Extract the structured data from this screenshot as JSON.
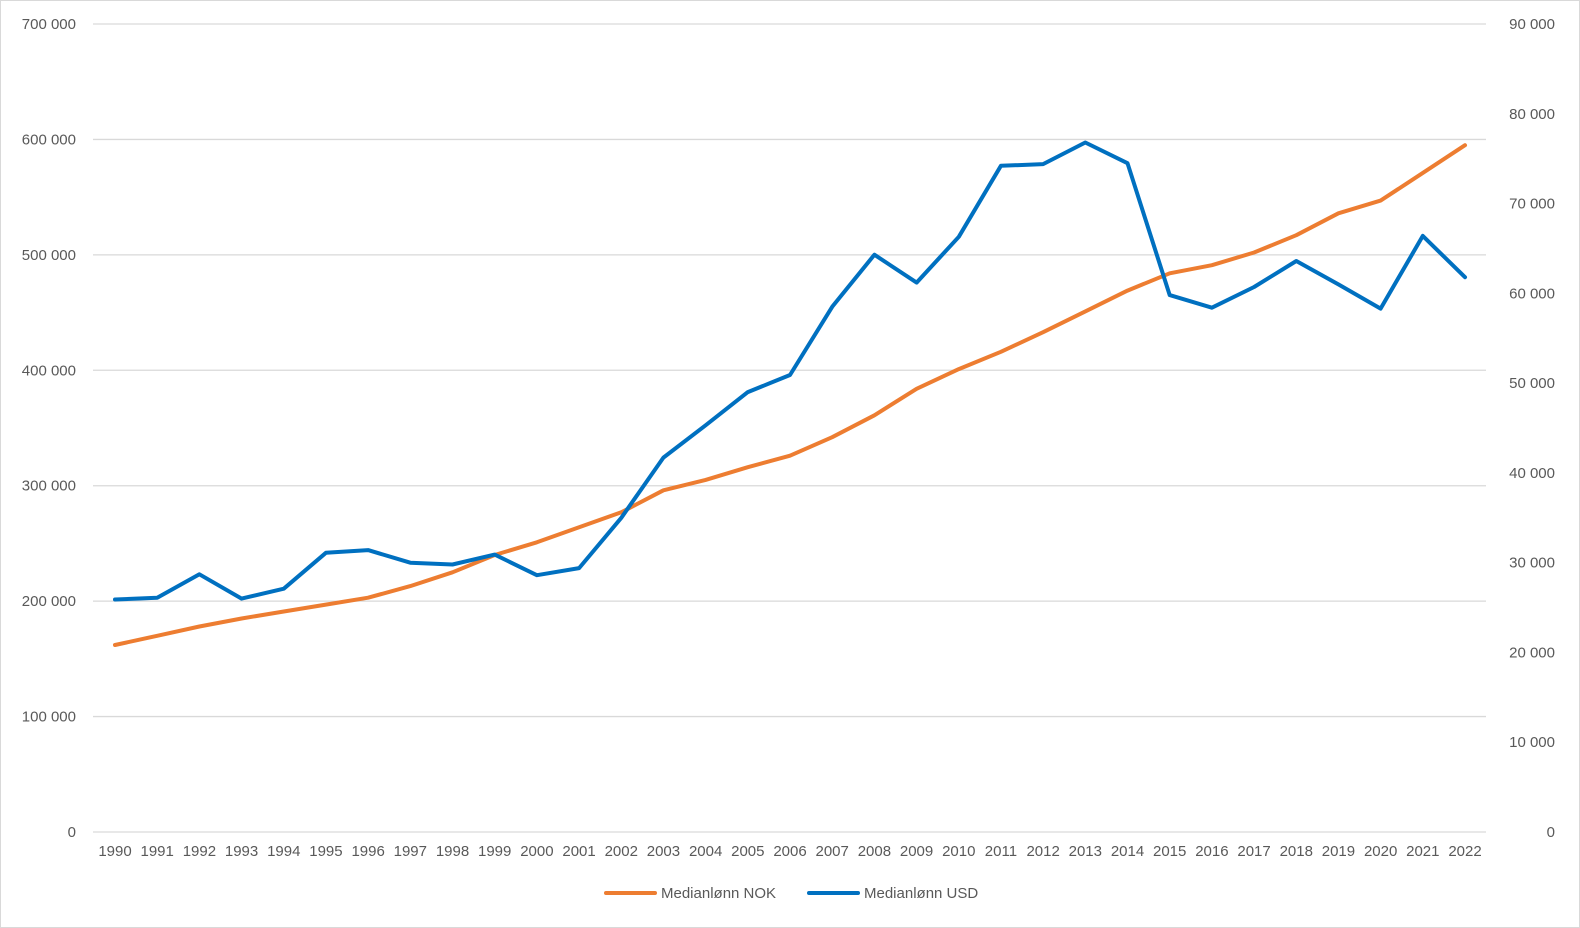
{
  "chart_data": {
    "type": "line",
    "title": "",
    "x": [
      "1990",
      "1991",
      "1992",
      "1993",
      "1994",
      "1995",
      "1996",
      "1997",
      "1998",
      "1999",
      "2000",
      "2001",
      "2002",
      "2003",
      "2004",
      "2005",
      "2006",
      "2007",
      "2008",
      "2009",
      "2010",
      "2011",
      "2012",
      "2013",
      "2014",
      "2015",
      "2016",
      "2017",
      "2018",
      "2019",
      "2020",
      "2021",
      "2022"
    ],
    "y_left": {
      "ylim": [
        0,
        700000
      ],
      "ticks": [
        0,
        100000,
        200000,
        300000,
        400000,
        500000,
        600000,
        700000
      ],
      "tick_labels": [
        "0",
        "100 000",
        "200 000",
        "300 000",
        "400 000",
        "500 000",
        "600 000",
        "700 000"
      ]
    },
    "y_right": {
      "ylim": [
        0,
        90000
      ],
      "ticks": [
        0,
        10000,
        20000,
        30000,
        40000,
        50000,
        60000,
        70000,
        80000,
        90000
      ],
      "tick_labels": [
        "0",
        "10 000",
        "20 000",
        "30 000",
        "40 000",
        "50 000",
        "60 000",
        "70 000",
        "80 000",
        "90 000"
      ]
    },
    "grid": true,
    "legend_position": "bottom",
    "series": [
      {
        "name": "Medianlønn NOK",
        "axis": "left",
        "color": "#ED7D31",
        "values": [
          162000,
          170000,
          178000,
          185000,
          191000,
          197000,
          203000,
          213000,
          225000,
          240000,
          251000,
          264000,
          277000,
          296000,
          305000,
          316000,
          326000,
          342000,
          361000,
          384000,
          401000,
          416000,
          433000,
          451000,
          469000,
          484000,
          491000,
          502000,
          517000,
          536000,
          547000,
          571000,
          595000
        ]
      },
      {
        "name": "Medianlønn USD",
        "axis": "right",
        "color": "#0070C0",
        "values": [
          25900,
          26100,
          28700,
          26000,
          27100,
          31100,
          31400,
          30000,
          29800,
          30900,
          28600,
          29400,
          35000,
          41700,
          45300,
          49000,
          50900,
          58500,
          64300,
          61200,
          66300,
          74200,
          74400,
          76800,
          74500,
          59800,
          58400,
          60700,
          63600,
          61000,
          58300,
          66400,
          61800
        ]
      }
    ]
  }
}
